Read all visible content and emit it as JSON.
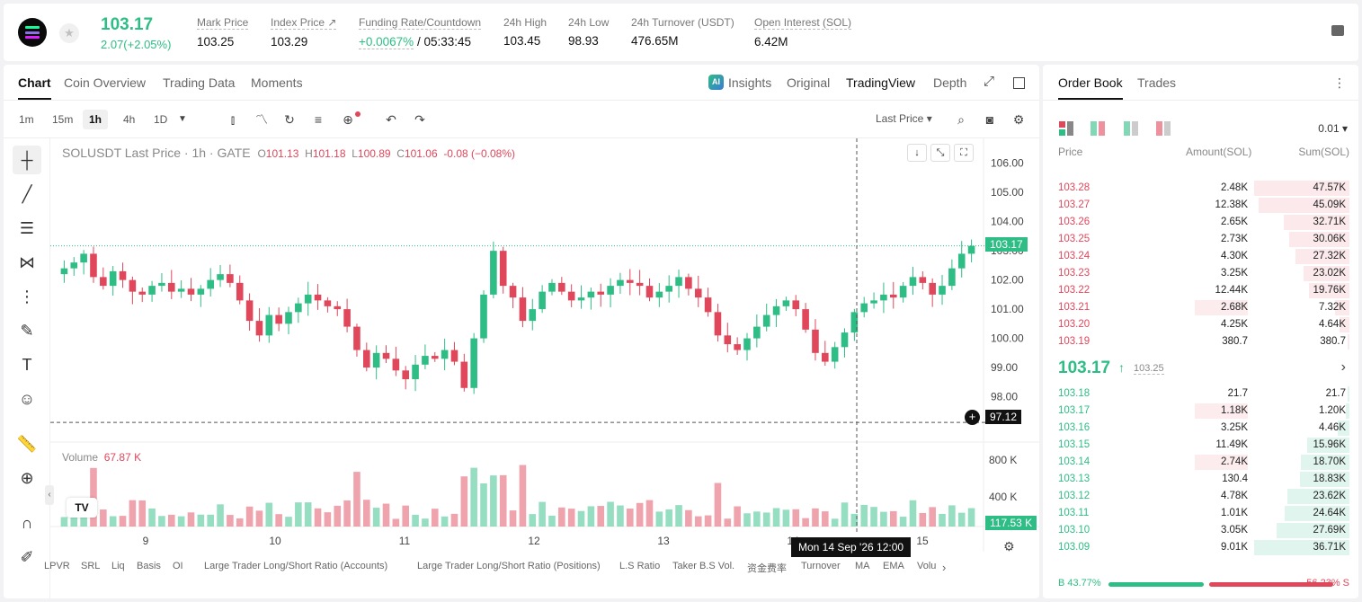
{
  "header": {
    "symbol_icon": "solana-logo",
    "last_price": "103.17",
    "change": "2.07(+2.05%)",
    "stats": [
      {
        "label": "Mark Price",
        "value": "103.25"
      },
      {
        "label": "Index Price ↗",
        "value": "103.29"
      },
      {
        "label": "Funding Rate/Countdown",
        "value_green": "+0.0067%",
        "value": "/ 05:33:45"
      },
      {
        "label": "24h High",
        "value": "103.45"
      },
      {
        "label": "24h Low",
        "value": "98.93"
      },
      {
        "label": "24h Turnover (USDT)",
        "value": "476.65M"
      },
      {
        "label": "Open Interest (SOL)",
        "value": "6.42M"
      }
    ]
  },
  "chart_tabs": {
    "left": [
      "Chart",
      "Coin Overview",
      "Trading Data",
      "Moments"
    ],
    "insights": "Insights",
    "right": [
      "Original",
      "TradingView",
      "Depth"
    ],
    "ai_badge": "AI"
  },
  "toolbar": {
    "timeframes": [
      "1m",
      "15m",
      "1h",
      "4h",
      "1D"
    ],
    "active_timeframe": "1h",
    "price_type": "Last Price"
  },
  "legend": {
    "title": "SOLUSDT Last Price · 1h · GATE",
    "o_label": "O",
    "o": "101.13",
    "h_label": "H",
    "h": "101.18",
    "l_label": "L",
    "l": "100.89",
    "c_label": "C",
    "c": "101.06",
    "chg": "-0.08 (−0.08%)",
    "volume_label": "Volume",
    "volume_value": "67.87 K"
  },
  "chart_data": {
    "type": "candlestick",
    "y_axis_ticks": [
      "106.00",
      "105.00",
      "104.00",
      "103.00",
      "102.00",
      "101.00",
      "100.00",
      "99.00",
      "98.00"
    ],
    "ylim": [
      97.0,
      106.3
    ],
    "volume_axis_ticks": [
      "800 K",
      "400 K"
    ],
    "x_axis_ticks": [
      "9",
      "10",
      "11",
      "12",
      "13",
      "14",
      "15"
    ],
    "last_price_tag": "103.17",
    "crosshair_price_tag": "97.12",
    "volume_tag": "117.53 K",
    "crosshair_time": "Mon 14 Sep '26   12:00",
    "close": [
      102.4,
      102.6,
      102.9,
      102.1,
      101.8,
      102.3,
      102.0,
      101.6,
      101.5,
      101.8,
      101.9,
      101.6,
      101.7,
      101.5,
      101.7,
      102.0,
      102.2,
      101.9,
      101.3,
      100.6,
      100.1,
      100.8,
      100.5,
      100.9,
      101.2,
      101.5,
      101.3,
      101.1,
      101.0,
      100.4,
      99.6,
      99.0,
      99.5,
      99.3,
      98.9,
      98.6,
      99.1,
      99.4,
      99.3,
      99.6,
      99.2,
      98.3,
      100.0,
      101.5,
      103.0,
      101.8,
      101.4,
      100.6,
      101.0,
      101.6,
      101.9,
      101.6,
      101.3,
      101.4,
      101.6,
      101.5,
      101.8,
      102.0,
      101.9,
      101.8,
      101.4,
      101.6,
      101.8,
      102.1,
      101.7,
      101.4,
      100.9,
      100.1,
      99.8,
      99.6,
      100.0,
      100.4,
      100.8,
      101.1,
      101.3,
      101.0,
      100.3,
      99.5,
      99.2,
      99.7,
      100.2,
      100.9,
      101.2,
      101.3,
      101.5,
      101.4,
      101.8,
      102.1,
      101.9,
      101.5,
      101.8,
      102.4,
      102.9,
      103.17
    ]
  },
  "indicators": [
    "LPVR",
    "SRL",
    "Liq",
    "Basis",
    "OI",
    "Large Trader Long/Short Ratio (Accounts)",
    "Large Trader Long/Short Ratio (Positions)",
    "L.S Ratio",
    "Taker B.S Vol.",
    "资金费率",
    "Turnover",
    "MA",
    "EMA",
    "Volu"
  ],
  "orderbook": {
    "tabs": [
      "Order Book",
      "Trades"
    ],
    "precision": "0.01",
    "headers": [
      "Price",
      "Amount(SOL)",
      "Sum(SOL)"
    ],
    "asks": [
      {
        "price": "103.28",
        "amount": "2.48K",
        "sum": "47.57K",
        "sumFrac": 1.0,
        "amtFrac": 0
      },
      {
        "price": "103.27",
        "amount": "12.38K",
        "sum": "45.09K",
        "sumFrac": 0.95,
        "amtFrac": 0
      },
      {
        "price": "103.26",
        "amount": "2.65K",
        "sum": "32.71K",
        "sumFrac": 0.69,
        "amtFrac": 0
      },
      {
        "price": "103.25",
        "amount": "2.73K",
        "sum": "30.06K",
        "sumFrac": 0.63,
        "amtFrac": 0
      },
      {
        "price": "103.24",
        "amount": "4.30K",
        "sum": "27.32K",
        "sumFrac": 0.57,
        "amtFrac": 0
      },
      {
        "price": "103.23",
        "amount": "3.25K",
        "sum": "23.02K",
        "sumFrac": 0.48,
        "amtFrac": 0
      },
      {
        "price": "103.22",
        "amount": "12.44K",
        "sum": "19.76K",
        "sumFrac": 0.42,
        "amtFrac": 0
      },
      {
        "price": "103.21",
        "amount": "2.68K",
        "sum": "7.32K",
        "sumFrac": 0.15,
        "amtFrac": 0.56
      },
      {
        "price": "103.20",
        "amount": "4.25K",
        "sum": "4.64K",
        "sumFrac": 0.1,
        "amtFrac": 0
      },
      {
        "price": "103.19",
        "amount": "380.7",
        "sum": "380.7",
        "sumFrac": 0.02,
        "amtFrac": 0
      }
    ],
    "mid_price": "103.17",
    "mid_mark": "103.25",
    "bids": [
      {
        "price": "103.18",
        "amount": "21.7",
        "sum": "21.7",
        "sumFrac": 0.02,
        "amtFrac": 0
      },
      {
        "price": "103.17",
        "amount": "1.18K",
        "sum": "1.20K",
        "sumFrac": 0.04,
        "amtFrac": 0.56
      },
      {
        "price": "103.16",
        "amount": "3.25K",
        "sum": "4.46K",
        "sumFrac": 0.12,
        "amtFrac": 0
      },
      {
        "price": "103.15",
        "amount": "11.49K",
        "sum": "15.96K",
        "sumFrac": 0.44,
        "amtFrac": 0
      },
      {
        "price": "103.14",
        "amount": "2.74K",
        "sum": "18.70K",
        "sumFrac": 0.51,
        "amtFrac": 0.56
      },
      {
        "price": "103.13",
        "amount": "130.4",
        "sum": "18.83K",
        "sumFrac": 0.52,
        "amtFrac": 0
      },
      {
        "price": "103.12",
        "amount": "4.78K",
        "sum": "23.62K",
        "sumFrac": 0.65,
        "amtFrac": 0
      },
      {
        "price": "103.11",
        "amount": "1.01K",
        "sum": "24.64K",
        "sumFrac": 0.68,
        "amtFrac": 0
      },
      {
        "price": "103.10",
        "amount": "3.05K",
        "sum": "27.69K",
        "sumFrac": 0.76,
        "amtFrac": 0
      },
      {
        "price": "103.09",
        "amount": "9.01K",
        "sum": "36.71K",
        "sumFrac": 1.0,
        "amtFrac": 0
      }
    ],
    "buy_ratio": "B 43.77%",
    "sell_ratio": "56.23% S",
    "buy_frac": 0.4377
  },
  "colors": {
    "up": "#2ebd85",
    "down": "#e0475b"
  }
}
